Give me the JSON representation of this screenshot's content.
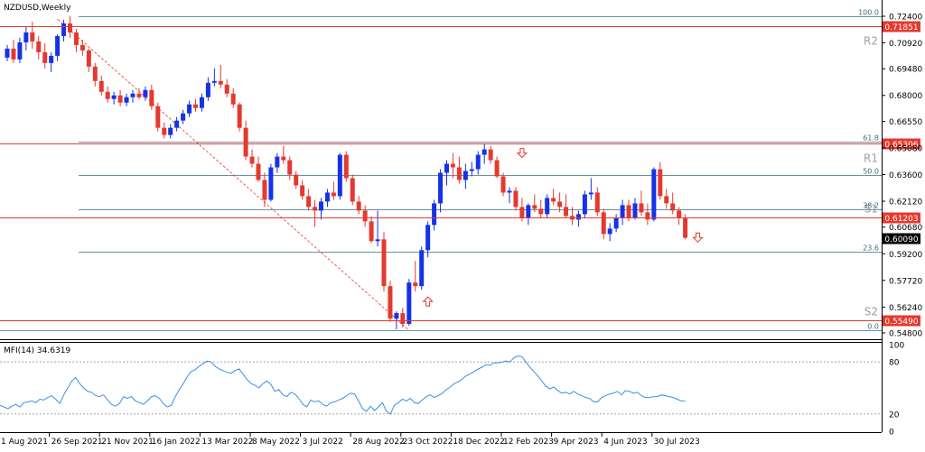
{
  "title": "NZDUSD,Weekly",
  "indicator_label": "MFI(14) 34.6319",
  "chart_data": [
    {
      "type": "candlestick",
      "title": "NZDUSD,Weekly",
      "ylim": [
        0.5445,
        0.7255
      ],
      "price_ticks": [
        "0.72400",
        "0.70920",
        "0.69480",
        "0.68000",
        "0.66550",
        "0.65080",
        "0.63600",
        "0.62120",
        "0.60680",
        "0.59200",
        "0.57720",
        "0.56240",
        "0.54800"
      ],
      "x_ticks": [
        "1 Aug 2021",
        "26 Sep 2021",
        "21 Nov 2021",
        "16 Jan 2022",
        "13 Mar 2022",
        "8 May 2022",
        "3 Jul 2022",
        "28 Aug 2022",
        "23 Oct 2022",
        "18 Dec 2022",
        "12 Feb 2023",
        "9 Apr 2023",
        "4 Jun 2023",
        "30 Jul 2023"
      ],
      "fibonacci": [
        {
          "label": "100.0",
          "price": 0.724
        },
        {
          "label": "61.8",
          "price": 0.6542
        },
        {
          "label": "50.0",
          "price": 0.6356
        },
        {
          "label": "38.2",
          "price": 0.6169
        },
        {
          "label": "23.6",
          "price": 0.593
        },
        {
          "label": "0.0",
          "price": 0.5495
        }
      ],
      "levels": [
        {
          "name": "R2",
          "label": "0.71851",
          "price": 0.71851
        },
        {
          "name": "R1",
          "label": "0.65306",
          "price": 0.65306
        },
        {
          "name": "S1",
          "label": "0.61203",
          "price": 0.61203
        },
        {
          "name": "S2",
          "label": "0.55490",
          "price": 0.5549
        }
      ],
      "current_price": {
        "label": "0.60090",
        "price": 0.6009
      },
      "trendline": {
        "from": {
          "week": 8,
          "price": 0.7224
        },
        "to": {
          "week": 64,
          "price": 0.5495
        }
      },
      "arrows": [
        {
          "dir": "up",
          "week": 67,
          "price": 0.5655
        },
        {
          "dir": "down",
          "week": 82,
          "price": 0.648
        },
        {
          "dir": "down",
          "week": 110,
          "price": 0.601
        }
      ],
      "candles": [
        [
          0.701,
          0.708,
          0.699,
          0.706
        ],
        [
          0.706,
          0.711,
          0.698,
          0.7
        ],
        [
          0.7,
          0.712,
          0.698,
          0.7095
        ],
        [
          0.7095,
          0.718,
          0.705,
          0.715
        ],
        [
          0.715,
          0.721,
          0.706,
          0.71
        ],
        [
          0.71,
          0.713,
          0.7,
          0.704
        ],
        [
          0.704,
          0.709,
          0.695,
          0.698
        ],
        [
          0.698,
          0.704,
          0.693,
          0.702
        ],
        [
          0.702,
          0.714,
          0.699,
          0.713
        ],
        [
          0.713,
          0.722,
          0.71,
          0.72
        ],
        [
          0.72,
          0.724,
          0.712,
          0.715
        ],
        [
          0.715,
          0.717,
          0.704,
          0.708
        ],
        [
          0.708,
          0.711,
          0.702,
          0.705
        ],
        [
          0.705,
          0.706,
          0.693,
          0.696
        ],
        [
          0.696,
          0.698,
          0.685,
          0.688
        ],
        [
          0.688,
          0.691,
          0.68,
          0.682
        ],
        [
          0.682,
          0.685,
          0.676,
          0.678
        ],
        [
          0.678,
          0.682,
          0.675,
          0.68
        ],
        [
          0.68,
          0.683,
          0.674,
          0.676
        ],
        [
          0.676,
          0.681,
          0.674,
          0.679
        ],
        [
          0.679,
          0.683,
          0.676,
          0.681
        ],
        [
          0.681,
          0.684,
          0.678,
          0.679
        ],
        [
          0.679,
          0.685,
          0.677,
          0.683
        ],
        [
          0.683,
          0.686,
          0.672,
          0.674
        ],
        [
          0.674,
          0.676,
          0.66,
          0.662
        ],
        [
          0.662,
          0.665,
          0.656,
          0.658
        ],
        [
          0.658,
          0.664,
          0.656,
          0.662
        ],
        [
          0.662,
          0.668,
          0.66,
          0.666
        ],
        [
          0.666,
          0.672,
          0.664,
          0.67
        ],
        [
          0.67,
          0.677,
          0.668,
          0.675
        ],
        [
          0.675,
          0.678,
          0.671,
          0.673
        ],
        [
          0.673,
          0.681,
          0.671,
          0.679
        ],
        [
          0.679,
          0.69,
          0.677,
          0.687
        ],
        [
          0.687,
          0.695,
          0.685,
          0.688
        ],
        [
          0.688,
          0.697,
          0.684,
          0.686
        ],
        [
          0.686,
          0.689,
          0.679,
          0.681
        ],
        [
          0.681,
          0.684,
          0.673,
          0.675
        ],
        [
          0.675,
          0.676,
          0.66,
          0.662
        ],
        [
          0.662,
          0.666,
          0.644,
          0.646
        ],
        [
          0.646,
          0.65,
          0.64,
          0.642
        ],
        [
          0.642,
          0.646,
          0.632,
          0.633
        ],
        [
          0.633,
          0.637,
          0.618,
          0.622
        ],
        [
          0.622,
          0.642,
          0.621,
          0.64
        ],
        [
          0.64,
          0.648,
          0.637,
          0.646
        ],
        [
          0.646,
          0.652,
          0.642,
          0.644
        ],
        [
          0.644,
          0.646,
          0.633,
          0.636
        ],
        [
          0.636,
          0.638,
          0.628,
          0.63
        ],
        [
          0.63,
          0.633,
          0.622,
          0.624
        ],
        [
          0.624,
          0.628,
          0.616,
          0.618
        ],
        [
          0.618,
          0.622,
          0.607,
          0.616
        ],
        [
          0.616,
          0.623,
          0.611,
          0.621
        ],
        [
          0.621,
          0.628,
          0.618,
          0.626
        ],
        [
          0.626,
          0.632,
          0.622,
          0.624
        ],
        [
          0.624,
          0.648,
          0.622,
          0.647
        ],
        [
          0.647,
          0.649,
          0.632,
          0.634
        ],
        [
          0.634,
          0.636,
          0.619,
          0.621
        ],
        [
          0.621,
          0.624,
          0.614,
          0.616
        ],
        [
          0.616,
          0.619,
          0.607,
          0.61
        ],
        [
          0.61,
          0.613,
          0.598,
          0.599
        ],
        [
          0.599,
          0.616,
          0.596,
          0.6
        ],
        [
          0.6,
          0.604,
          0.571,
          0.574
        ],
        [
          0.574,
          0.577,
          0.554,
          0.556
        ],
        [
          0.556,
          0.56,
          0.55,
          0.559
        ],
        [
          0.559,
          0.562,
          0.551,
          0.553
        ],
        [
          0.553,
          0.578,
          0.552,
          0.576
        ],
        [
          0.576,
          0.588,
          0.571,
          0.574
        ],
        [
          0.574,
          0.596,
          0.572,
          0.594
        ],
        [
          0.594,
          0.61,
          0.59,
          0.608
        ],
        [
          0.608,
          0.622,
          0.605,
          0.62
        ],
        [
          0.62,
          0.639,
          0.615,
          0.637
        ],
        [
          0.637,
          0.644,
          0.63,
          0.642
        ],
        [
          0.642,
          0.648,
          0.634,
          0.64
        ],
        [
          0.64,
          0.646,
          0.631,
          0.633
        ],
        [
          0.633,
          0.642,
          0.628,
          0.638
        ],
        [
          0.638,
          0.643,
          0.635,
          0.639
        ],
        [
          0.639,
          0.649,
          0.636,
          0.647
        ],
        [
          0.647,
          0.653,
          0.642,
          0.65
        ],
        [
          0.65,
          0.652,
          0.642,
          0.644
        ],
        [
          0.644,
          0.646,
          0.634,
          0.635
        ],
        [
          0.635,
          0.637,
          0.624,
          0.626
        ],
        [
          0.626,
          0.629,
          0.62,
          0.627
        ],
        [
          0.627,
          0.629,
          0.616,
          0.618
        ],
        [
          0.618,
          0.623,
          0.61,
          0.612
        ],
        [
          0.612,
          0.62,
          0.608,
          0.619
        ],
        [
          0.619,
          0.625,
          0.615,
          0.617
        ],
        [
          0.617,
          0.622,
          0.612,
          0.614
        ],
        [
          0.614,
          0.625,
          0.612,
          0.623
        ],
        [
          0.623,
          0.628,
          0.619,
          0.621
        ],
        [
          0.621,
          0.626,
          0.615,
          0.618
        ],
        [
          0.618,
          0.625,
          0.612,
          0.613
        ],
        [
          0.613,
          0.618,
          0.608,
          0.611
        ],
        [
          0.611,
          0.616,
          0.607,
          0.614
        ],
        [
          0.614,
          0.627,
          0.612,
          0.625
        ],
        [
          0.625,
          0.634,
          0.622,
          0.626
        ],
        [
          0.626,
          0.629,
          0.613,
          0.615
        ],
        [
          0.615,
          0.617,
          0.6,
          0.603
        ],
        [
          0.603,
          0.609,
          0.599,
          0.606
        ],
        [
          0.606,
          0.614,
          0.604,
          0.612
        ],
        [
          0.612,
          0.622,
          0.608,
          0.619
        ],
        [
          0.619,
          0.622,
          0.61,
          0.612
        ],
        [
          0.612,
          0.623,
          0.611,
          0.62
        ],
        [
          0.62,
          0.627,
          0.613,
          0.615
        ],
        [
          0.615,
          0.62,
          0.608,
          0.611
        ],
        [
          0.611,
          0.64,
          0.61,
          0.639
        ],
        [
          0.639,
          0.643,
          0.622,
          0.624
        ],
        [
          0.624,
          0.628,
          0.617,
          0.62
        ],
        [
          0.62,
          0.626,
          0.614,
          0.616
        ],
        [
          0.616,
          0.618,
          0.608,
          0.612
        ],
        [
          0.612,
          0.614,
          0.6,
          0.6009
        ]
      ]
    },
    {
      "type": "line",
      "title": "MFI(14) 34.6319",
      "ylim": [
        0,
        100
      ],
      "y_ticks": [
        "100",
        "80",
        "20",
        "0"
      ],
      "levels": [
        80,
        20
      ],
      "values": [
        30,
        28,
        26,
        29,
        31,
        28,
        33,
        34,
        35,
        33,
        37,
        36,
        39,
        41,
        37,
        32,
        42,
        50,
        58,
        62,
        55,
        50,
        46,
        45,
        41,
        40,
        42,
        36,
        31,
        29,
        32,
        40,
        38,
        40,
        35,
        33,
        31,
        35,
        40,
        41,
        38,
        32,
        28,
        30,
        40,
        48,
        55,
        63,
        69,
        71,
        75,
        78,
        81,
        80,
        75,
        72,
        70,
        68,
        67,
        70,
        72,
        66,
        60,
        55,
        53,
        50,
        55,
        58,
        54,
        46,
        48,
        42,
        40,
        45,
        43,
        38,
        31,
        28,
        36,
        34,
        35,
        31,
        29,
        33,
        34,
        36,
        38,
        41,
        44,
        43,
        35,
        26,
        23,
        29,
        24,
        28,
        33,
        23,
        20,
        30,
        33,
        37,
        35,
        38,
        33,
        32,
        36,
        40,
        42,
        39,
        41,
        44,
        48,
        51,
        55,
        57,
        60,
        64,
        66,
        69,
        72,
        74,
        77,
        76,
        79,
        79,
        80,
        81,
        80,
        85,
        87,
        86,
        80,
        74,
        69,
        64,
        58,
        52,
        49,
        51,
        47,
        44,
        45,
        43,
        46,
        43,
        41,
        39,
        38,
        34,
        34,
        39,
        41,
        43,
        44,
        46,
        42,
        47,
        46,
        44,
        45,
        41,
        39,
        39,
        40,
        40,
        42,
        41,
        40,
        39,
        37,
        35,
        34.6319
      ]
    }
  ]
}
